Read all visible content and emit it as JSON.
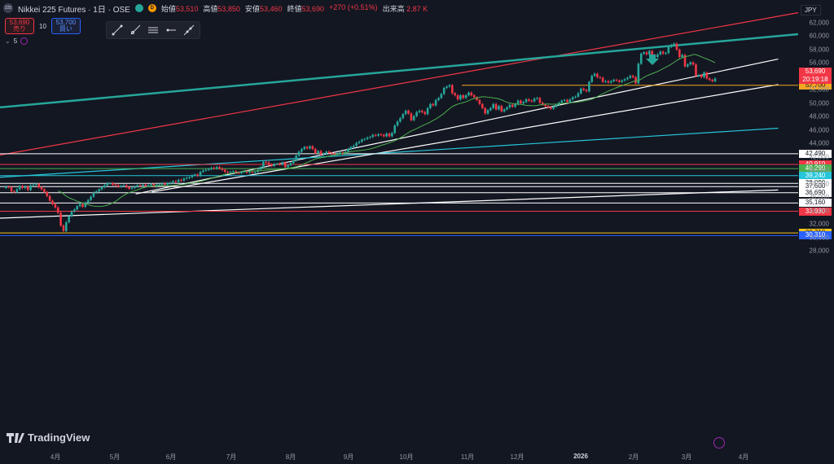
{
  "header": {
    "symbol_icon": "225",
    "title": "Nikkei 225 Futures · 1日 · OSE",
    "badge_o": "D",
    "ohlc": [
      {
        "k": "始値",
        "v": "53,510"
      },
      {
        "k": "高値",
        "v": "53,850"
      },
      {
        "k": "安値",
        "v": "53,460"
      },
      {
        "k": "終値",
        "v": "53,690"
      }
    ],
    "change": "+270 (+0.51%)",
    "volume_label": "出来高",
    "volume": "2.87 K"
  },
  "trade": {
    "sell_price": "53,690",
    "sell_label": "売り",
    "qty": "10",
    "buy_price": "53,700",
    "buy_label": "買い"
  },
  "indicator": {
    "label": "5"
  },
  "toolbar": [
    "trendline-icon",
    "ray-icon",
    "parallel-channel-icon",
    "horizontal-ray-icon",
    "extended-line-icon"
  ],
  "currency": "JPY",
  "brand": "TradingView",
  "colors": {
    "up": "#26a69a",
    "down": "#f23645",
    "bg": "#131722"
  },
  "chart_data": {
    "type": "candlestick",
    "y_ticks": [
      "62,000",
      "60,000",
      "58,000",
      "56,000",
      "54,000",
      "52,000",
      "50,000",
      "48,000",
      "46,000",
      "44,000",
      "42,000",
      "40,000",
      "38,000",
      "36,000",
      "34,000",
      "32,000",
      "30,000",
      "28,000"
    ],
    "x_ticks": [
      "4月",
      "5月",
      "6月",
      "7月",
      "8月",
      "9月",
      "10月",
      "11月",
      "12月",
      "2026",
      "2月",
      "3月",
      "4月"
    ],
    "current_price": "53,690",
    "countdown": "20:19:18",
    "horizontal_levels": [
      {
        "value": 52700,
        "label": "52,700",
        "color": "#f5a623"
      },
      {
        "value": 42490,
        "label": "42,490",
        "color": "#ffffff"
      },
      {
        "value": 40910,
        "label": "40,910",
        "color": "#f23645"
      },
      {
        "value": 40290,
        "label": "40,290",
        "color": "#4caf50"
      },
      {
        "value": 39240,
        "label": "39,240",
        "color": "#26c6da"
      },
      {
        "value": 38090,
        "label": "38,090",
        "color": "#ffffff"
      },
      {
        "value": 37600,
        "label": "37,600",
        "color": "#ffffff"
      },
      {
        "value": 36690,
        "label": "36,690",
        "color": "#ffffff"
      },
      {
        "value": 35160,
        "label": "35,160",
        "color": "#ffffff"
      },
      {
        "value": 33930,
        "label": "33,930",
        "color": "#f23645"
      },
      {
        "value": 30710,
        "label": "30,710",
        "color": "#f5c518"
      },
      {
        "value": 30310,
        "label": "30,310",
        "color": "#2962ff"
      }
    ],
    "trendlines": [
      {
        "color": "#f23645",
        "from": [
          0,
          42300
        ],
        "to": [
          1.0,
          63500
        ]
      },
      {
        "color": "#26a69a",
        "from": [
          0,
          49400
        ],
        "to": [
          1.0,
          60300
        ]
      },
      {
        "color": "#ffffff",
        "from": [
          0.17,
          36500
        ],
        "to": [
          0.975,
          56600
        ]
      },
      {
        "color": "#ffffff",
        "from": [
          0.19,
          36800
        ],
        "to": [
          0.975,
          52800
        ]
      },
      {
        "color": "#ffffff",
        "from": [
          0,
          32900
        ],
        "to": [
          0.975,
          37100
        ]
      },
      {
        "color": "#26c6da",
        "from": [
          0,
          39000
        ],
        "to": [
          0.975,
          46300
        ]
      }
    ],
    "closes": [
      37400,
      37600,
      37500,
      36900,
      36800,
      37200,
      37700,
      37400,
      37600,
      37100,
      37800,
      37900,
      38000,
      37500,
      37200,
      36800,
      36200,
      35500,
      35000,
      34500,
      33700,
      31800,
      31000,
      32300,
      33200,
      33900,
      34200,
      34700,
      35000,
      34600,
      35200,
      35600,
      36100,
      36700,
      36900,
      37200,
      37500,
      37800,
      38100,
      38100,
      37900,
      37800,
      37600,
      37700,
      37800,
      37500,
      37300,
      37400,
      37600,
      37800,
      37700,
      37900,
      37700,
      37800,
      38000,
      37600,
      37900,
      37900,
      38100,
      37900,
      38100,
      38200,
      38400,
      38300,
      38600,
      38500,
      38800,
      38900,
      39000,
      39300,
      39400,
      39200,
      39800,
      40000,
      40100,
      40200,
      40400,
      40300,
      40500,
      40300,
      40100,
      39800,
      39700,
      39800,
      39900,
      39700,
      39600,
      39800,
      39900,
      39700,
      39800,
      39700,
      39800,
      40100,
      40500,
      41300,
      41200,
      40900,
      40700,
      41000,
      41000,
      40900,
      41200,
      40500,
      40800,
      41100,
      41500,
      42200,
      42800,
      43200,
      43500,
      43300,
      43600,
      43200,
      42600,
      42900,
      42400,
      42500,
      42800,
      42600,
      42500,
      42400,
      42500,
      42700,
      42500,
      42800,
      43200,
      43500,
      43700,
      44100,
      44300,
      44600,
      44700,
      44900,
      45000,
      45300,
      45200,
      45400,
      45300,
      45100,
      45500,
      45100,
      45600,
      46700,
      47300,
      47800,
      48400,
      48900,
      48500,
      47500,
      48100,
      48700,
      48900,
      48700,
      48400,
      49300,
      49900,
      49700,
      50500,
      50800,
      51400,
      52300,
      52500,
      52700,
      51500,
      51200,
      50600,
      51200,
      50800,
      51200,
      51600,
      51200,
      50900,
      50500,
      49900,
      49300,
      48500,
      49000,
      49300,
      49900,
      49100,
      49600,
      48800,
      49100,
      49400,
      49800,
      49500,
      49900,
      50400,
      50000,
      50200,
      50600,
      50400,
      50300,
      50700,
      50800,
      50100,
      49800,
      49600,
      49400,
      49200,
      49500,
      49800,
      50100,
      50400,
      50500,
      50200,
      50600,
      50900,
      51000,
      51500,
      52200,
      52000,
      51800,
      53200,
      54100,
      54400,
      53900,
      53800,
      53200,
      53300,
      53100,
      53300,
      53500,
      53400,
      53200,
      53400,
      53600,
      53800,
      54100,
      53900,
      53000,
      55900,
      57400,
      57600,
      57300,
      57800,
      57200,
      56900,
      57300,
      57700,
      57400,
      57500,
      58400,
      58700,
      58900,
      58000,
      56900,
      57200,
      55500,
      55800,
      56100,
      55800,
      54100,
      54200,
      53900,
      54600,
      53700,
      53500,
      53300,
      53690
    ],
    "ma_period": 5
  }
}
